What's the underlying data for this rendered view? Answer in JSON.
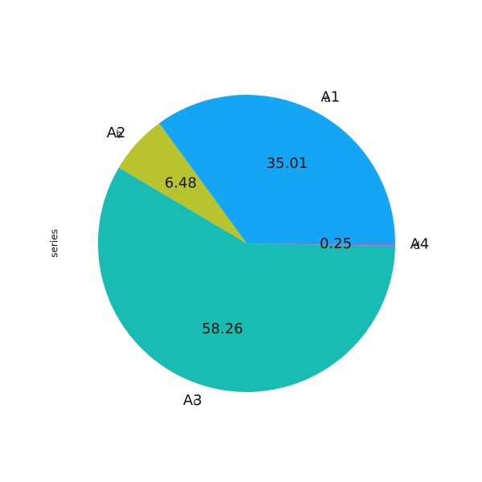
{
  "chart_data": {
    "type": "pie",
    "ylabel": "series",
    "slices": [
      {
        "label": "A1",
        "ghost_label": "a",
        "value": 35.01,
        "value_label": "35.01",
        "color": "#14a6f5"
      },
      {
        "label": "A2",
        "ghost_label": "b",
        "value": 6.48,
        "value_label": "6.48",
        "color": "#b8c42d"
      },
      {
        "label": "A3",
        "ghost_label": "c",
        "value": 58.26,
        "value_label": "58.26",
        "color": "#18bcb2"
      },
      {
        "label": "A4",
        "ghost_label": "d",
        "value": 0.25,
        "value_label": "0.25",
        "color": "#9b6ad6"
      }
    ],
    "start_angle": 0,
    "direction": "counterclockwise"
  }
}
